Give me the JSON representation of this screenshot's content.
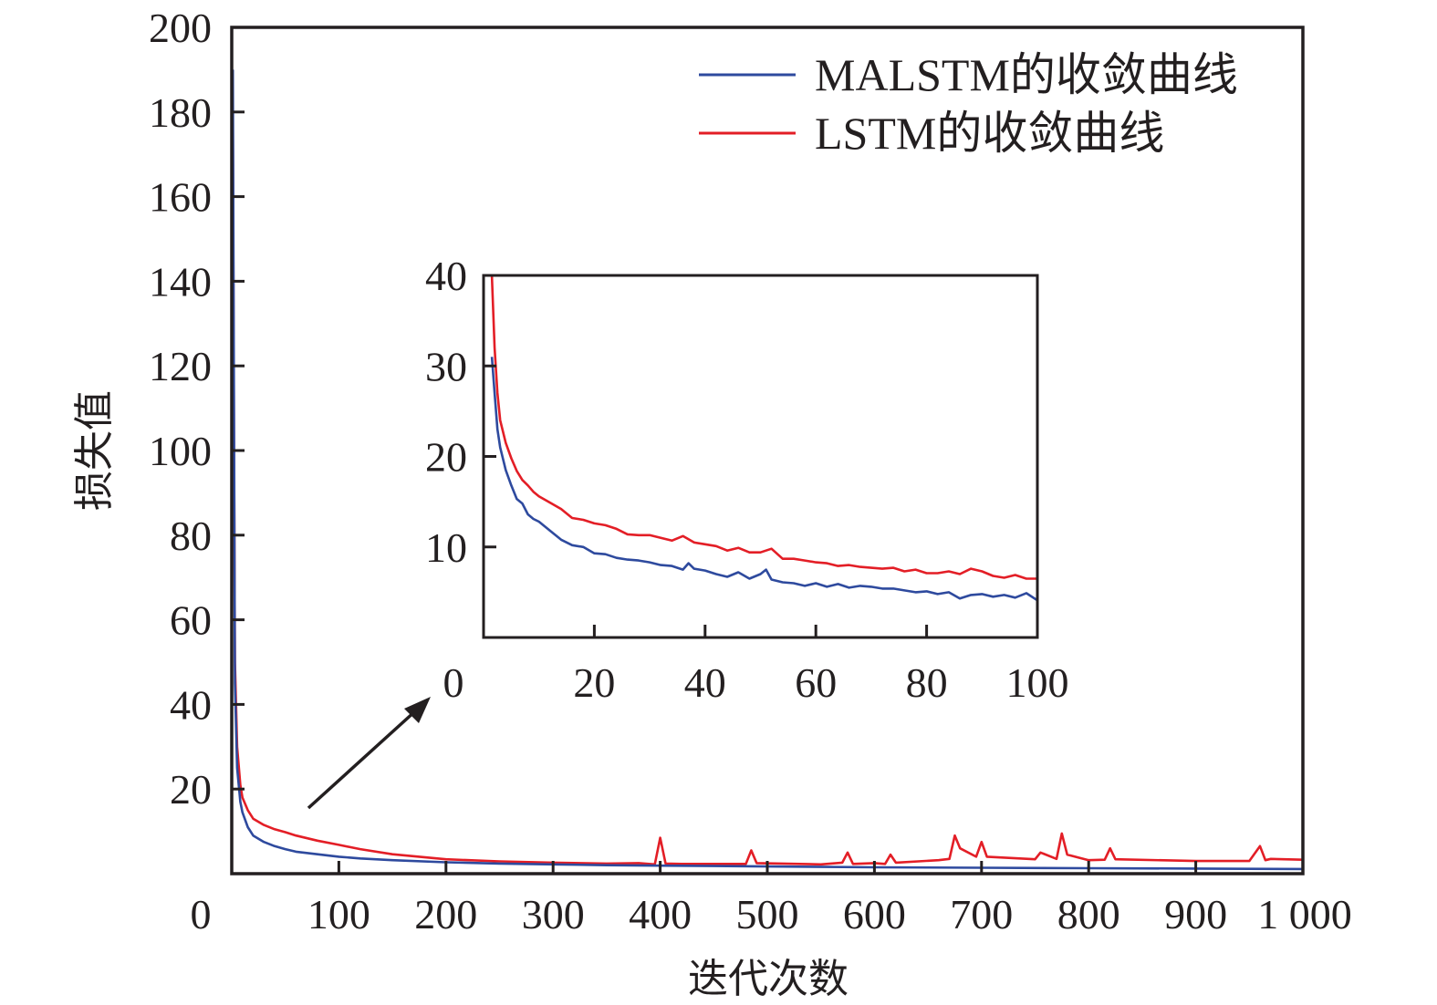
{
  "chart_data": [
    {
      "id": "main",
      "type": "line",
      "title": "",
      "xlabel": "迭代次数",
      "ylabel": "损失值",
      "xlim": [
        0,
        1000
      ],
      "ylim": [
        0,
        200
      ],
      "xticks": [
        0,
        100,
        200,
        300,
        400,
        500,
        600,
        700,
        800,
        900,
        1000
      ],
      "xtick_labels": [
        "0",
        "100",
        "200",
        "300",
        "400",
        "500",
        "600",
        "700",
        "800",
        "900",
        "1 000"
      ],
      "yticks": [
        20,
        40,
        60,
        80,
        100,
        120,
        140,
        160,
        180,
        200
      ],
      "ytick_labels": [
        "20",
        "40",
        "60",
        "80",
        "100",
        "120",
        "140",
        "160",
        "180",
        "200"
      ],
      "grid": false,
      "legend_position": "top-right",
      "series": [
        {
          "name": "MALSTM的收敛曲线",
          "color": "#2e4a9e",
          "x": [
            1,
            2,
            3,
            5,
            8,
            10,
            15,
            20,
            30,
            40,
            50,
            60,
            80,
            100,
            120,
            150,
            200,
            250,
            300,
            350,
            400,
            450,
            500,
            600,
            700,
            800,
            900,
            1000
          ],
          "y": [
            190,
            120,
            45,
            25,
            17,
            14.5,
            11,
            9,
            7.5,
            6.5,
            5.8,
            5.2,
            4.6,
            4.0,
            3.6,
            3.2,
            2.7,
            2.4,
            2.2,
            2.0,
            1.9,
            1.8,
            1.7,
            1.5,
            1.4,
            1.3,
            1.2,
            1.1
          ]
        },
        {
          "name": "LSTM的收敛曲线",
          "color": "#e31e26",
          "x": [
            1,
            2,
            3,
            5,
            8,
            10,
            15,
            20,
            30,
            40,
            50,
            60,
            80,
            100,
            120,
            150,
            200,
            250,
            300,
            350,
            380,
            395,
            400,
            405,
            420,
            480,
            485,
            490,
            550,
            570,
            575,
            580,
            600,
            610,
            615,
            620,
            660,
            670,
            675,
            680,
            695,
            700,
            705,
            750,
            755,
            770,
            775,
            780,
            800,
            815,
            820,
            825,
            900,
            950,
            960,
            965,
            970,
            1000
          ],
          "y": [
            175,
            110,
            50,
            30,
            21,
            18,
            15,
            13,
            11.5,
            10.5,
            9.8,
            9,
            7.8,
            6.8,
            5.8,
            4.6,
            3.4,
            2.9,
            2.6,
            2.4,
            2.5,
            2.2,
            8.5,
            2.4,
            2.3,
            2.3,
            5.5,
            2.5,
            2.2,
            2.6,
            5,
            2.3,
            2.5,
            2.3,
            4.5,
            2.6,
            3.2,
            3.5,
            9,
            6,
            4,
            7.5,
            4,
            3.4,
            5,
            3.5,
            9.5,
            4.5,
            3.2,
            3.3,
            6,
            3.4,
            3.0,
            3.0,
            6.5,
            3.2,
            3.5,
            3.3
          ]
        }
      ]
    },
    {
      "id": "inset",
      "type": "line",
      "title": "",
      "xlim": [
        0,
        100
      ],
      "ylim": [
        0,
        40
      ],
      "xticks": [
        0,
        20,
        40,
        60,
        80,
        100
      ],
      "xtick_labels": [
        "0",
        "20",
        "40",
        "60",
        "80",
        "100"
      ],
      "yticks": [
        10,
        20,
        30,
        40
      ],
      "ytick_labels": [
        "10",
        "20",
        "30",
        "40"
      ],
      "grid": false,
      "series": [
        {
          "name": "MALSTM的收敛曲线",
          "color": "#2e4a9e",
          "x": [
            1.5,
            2,
            2.5,
            3,
            4,
            5,
            6,
            7,
            8,
            9,
            10,
            12,
            14,
            16,
            18,
            20,
            22,
            24,
            26,
            28,
            30,
            32,
            34,
            36,
            37,
            38,
            40,
            42,
            44,
            46,
            48,
            50,
            51,
            52,
            54,
            56,
            58,
            60,
            62,
            64,
            66,
            68,
            70,
            72,
            74,
            76,
            78,
            80,
            82,
            84,
            86,
            88,
            90,
            92,
            94,
            96,
            98,
            100
          ],
          "y": [
            31,
            27,
            23,
            21,
            18.5,
            16.8,
            15.3,
            14.8,
            13.6,
            13.1,
            12.8,
            11.8,
            10.8,
            10.2,
            10.0,
            9.3,
            9.2,
            8.8,
            8.6,
            8.5,
            8.3,
            8.0,
            7.9,
            7.5,
            8.2,
            7.6,
            7.4,
            7.0,
            6.7,
            7.2,
            6.5,
            7.0,
            7.5,
            6.4,
            6.1,
            6.0,
            5.7,
            6.0,
            5.6,
            5.9,
            5.5,
            5.7,
            5.6,
            5.4,
            5.4,
            5.2,
            5.0,
            5.1,
            4.8,
            5.0,
            4.3,
            4.7,
            4.8,
            4.5,
            4.7,
            4.4,
            4.9,
            4.1
          ]
        },
        {
          "name": "LSTM的收敛曲线",
          "color": "#e31e26",
          "x": [
            1.5,
            2,
            2.5,
            3,
            4,
            5,
            6,
            7,
            8,
            9,
            10,
            12,
            14,
            16,
            18,
            20,
            22,
            24,
            26,
            28,
            30,
            32,
            34,
            36,
            38,
            40,
            42,
            44,
            46,
            48,
            50,
            52,
            54,
            56,
            58,
            60,
            62,
            64,
            66,
            68,
            70,
            72,
            74,
            76,
            78,
            80,
            82,
            84,
            86,
            88,
            90,
            92,
            94,
            96,
            98,
            100
          ],
          "y": [
            40,
            32,
            27,
            24,
            21.5,
            19.8,
            18.4,
            17.4,
            16.8,
            16.1,
            15.6,
            14.9,
            14.2,
            13.2,
            13.0,
            12.6,
            12.4,
            12.0,
            11.4,
            11.3,
            11.3,
            11.0,
            10.7,
            11.2,
            10.5,
            10.3,
            10.1,
            9.6,
            9.9,
            9.4,
            9.4,
            9.8,
            8.7,
            8.7,
            8.5,
            8.3,
            8.2,
            7.9,
            8.0,
            7.8,
            7.7,
            7.6,
            7.7,
            7.3,
            7.5,
            7.1,
            7.1,
            7.3,
            7.0,
            7.6,
            7.3,
            6.8,
            6.6,
            6.9,
            6.5,
            6.5
          ]
        }
      ]
    }
  ],
  "axes": {
    "xlabel": "迭代次数",
    "ylabel": "损失值"
  },
  "legend": [
    {
      "label": "MALSTM的收敛曲线",
      "color": "#2e4a9e"
    },
    {
      "label": "LSTM的收敛曲线",
      "color": "#e31e26"
    }
  ],
  "annotation": {
    "type": "arrow",
    "description_label": ""
  }
}
